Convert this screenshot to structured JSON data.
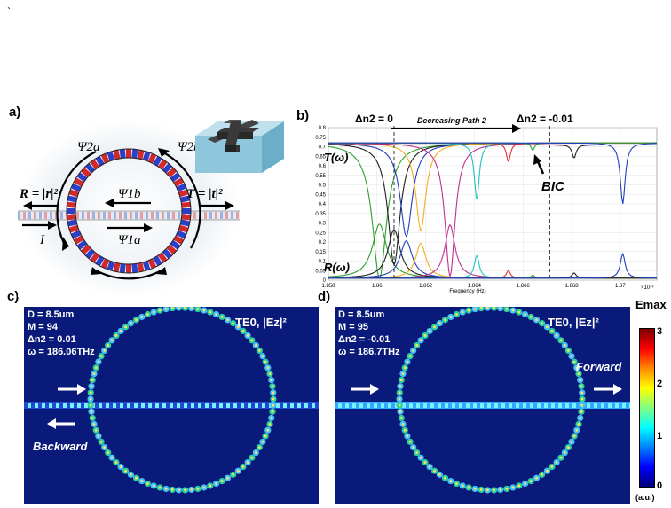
{
  "stray_mark": "`",
  "panel_labels": {
    "a": "a)",
    "b": "b)",
    "c": "c)",
    "d": "d)"
  },
  "panel_a": {
    "psi_2a": "Ψ2a",
    "psi_2b": "Ψ2b",
    "psi_1b": "Ψ1b",
    "psi_1a": "Ψ1a",
    "R_label": "R = |r|²",
    "T_label": "T = |t|²",
    "I_label": "I"
  },
  "chart_data": {
    "type": "line",
    "title": "",
    "xlabel": "Frequency (Hz)",
    "x_multiplier": "×10¹⁴",
    "ylabel": "",
    "xlim": [
      1.858,
      1.8715
    ],
    "ylim": [
      0,
      0.8
    ],
    "x_ticks": [
      "1.858",
      "1.86",
      "1.862",
      "1.864",
      "1.866",
      "1.868",
      "1.87"
    ],
    "x_tick_values": [
      1.858,
      1.86,
      1.862,
      1.864,
      1.866,
      1.868,
      1.87
    ],
    "y_ticks": [
      "0",
      "0.05",
      "0.1",
      "0.15",
      "0.2",
      "0.25",
      "0.3",
      "0.35",
      "0.4",
      "0.45",
      "0.5",
      "0.55",
      "0.6",
      "0.65",
      "0.7",
      "0.75",
      "0.8"
    ],
    "y_tick_values": [
      0,
      0.05,
      0.1,
      0.15,
      0.2,
      0.25,
      0.3,
      0.35,
      0.4,
      0.45,
      0.5,
      0.55,
      0.6,
      0.65,
      0.7,
      0.75,
      0.8
    ],
    "grid": true,
    "annotations": {
      "dn_start": "Δn2 = 0",
      "dn_end": "Δn2 = -0.01",
      "path": "Decreasing Path 2",
      "T": "T(ω)",
      "R": "R(ω)",
      "BIC": "BIC"
    },
    "dashed_lines_x": [
      1.8607,
      1.8671
    ],
    "series_colors": [
      "#2ca02c",
      "#1f1f1f",
      "#1f3fbf",
      "#f0b020",
      "#c0308f",
      "#20c0c0",
      "#e03030"
    ],
    "resonances": [
      {
        "center": 1.8601,
        "width": 0.00035,
        "base": 0.72,
        "dip": 0.01
      },
      {
        "center": 1.8607,
        "width": 0.0003,
        "base": 0.72,
        "dip": 0.08
      },
      {
        "center": 1.8612,
        "width": 0.0003,
        "base": 0.72,
        "dip": 0.23
      },
      {
        "center": 1.8618,
        "width": 0.00025,
        "base": 0.72,
        "dip": 0.26
      },
      {
        "center": 1.863,
        "width": 0.00025,
        "base": 0.72,
        "dip": 0.02
      },
      {
        "center": 1.8641,
        "width": 0.00012,
        "base": 0.72,
        "dip": 0.42
      },
      {
        "center": 1.8654,
        "width": 0.0001,
        "base": 0.72,
        "dip": 0.62
      },
      {
        "center": 1.8664,
        "width": 8e-05,
        "base": 0.72,
        "dip": 0.68
      },
      {
        "center": 1.8681,
        "width": 0.0001,
        "base": 0.71,
        "dip": 0.64
      },
      {
        "center": 1.8701,
        "width": 0.00012,
        "base": 0.72,
        "dip": 0.4
      }
    ]
  },
  "panel_c": {
    "params": [
      "D = 8.5um",
      "M = 94",
      "Δn2 = 0.01",
      "ω = 186.06THz"
    ],
    "mode": "TE0, |Ez|²",
    "direction": "Backward"
  },
  "panel_d": {
    "params": [
      "D = 8.5um",
      "M = 95",
      "Δn2 = -0.01",
      "ω = 186.7THz"
    ],
    "mode": "TE0, |Ez|²",
    "direction": "Forward"
  },
  "colorbar": {
    "title": "Emax",
    "ticks": [
      "3",
      "2",
      "1",
      "0"
    ],
    "unit": "(a.u.)"
  }
}
